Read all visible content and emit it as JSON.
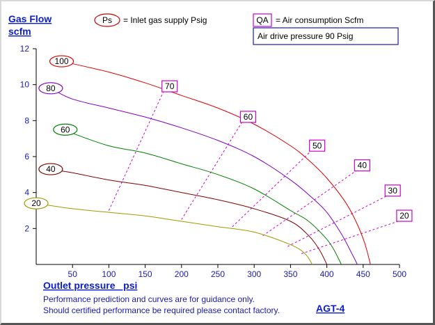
{
  "chart_data": {
    "type": "line",
    "title": "",
    "ylabel": "Gas Flow",
    "yunit": "scfm",
    "xlabel": "Outlet pressure   psi",
    "ylim": [
      0,
      12
    ],
    "xlim": [
      0,
      500
    ],
    "xticks": [
      50,
      100,
      150,
      200,
      250,
      300,
      350,
      400,
      450,
      500
    ],
    "yticks": [
      2,
      4,
      6,
      8,
      10,
      12
    ],
    "grid": false,
    "legend": {
      "ps_symbol": "Ps",
      "ps_text": "= Inlet gas supply  Psig",
      "qa_symbol": "QA",
      "qa_text": "= Air consumption  Scfm",
      "drive_text": "Air drive pressure  90 Psig"
    },
    "series": [
      {
        "name": "100",
        "color": "#e00000",
        "x": [
          35,
          100,
          150,
          200,
          250,
          300,
          350,
          375,
          400,
          425,
          440,
          452,
          460
        ],
        "y": [
          11.3,
          10.7,
          10.1,
          9.4,
          8.7,
          7.8,
          6.6,
          5.8,
          4.8,
          3.5,
          2.4,
          1.2,
          0
        ]
      },
      {
        "name": "80",
        "color": "#8000c0",
        "x": [
          20,
          50,
          100,
          150,
          200,
          250,
          300,
          350,
          380,
          400,
          420,
          432,
          442
        ],
        "y": [
          9.8,
          9.2,
          8.7,
          8.2,
          7.6,
          6.9,
          6.0,
          4.7,
          3.7,
          2.9,
          1.7,
          0.8,
          0
        ]
      },
      {
        "name": "60",
        "color": "#008000",
        "x": [
          40,
          50,
          100,
          150,
          200,
          250,
          300,
          350,
          375,
          400,
          410,
          420
        ],
        "y": [
          7.5,
          7.3,
          6.6,
          6.2,
          5.6,
          5.0,
          4.2,
          3.0,
          2.4,
          1.4,
          0.8,
          0
        ]
      },
      {
        "name": "40",
        "color": "#800000",
        "x": [
          20,
          50,
          100,
          150,
          200,
          250,
          300,
          350,
          375,
          390,
          400
        ],
        "y": [
          5.3,
          5.1,
          4.7,
          4.4,
          4.0,
          3.6,
          3.1,
          2.4,
          1.6,
          0.8,
          0
        ]
      },
      {
        "name": "20",
        "color": "#a09a00",
        "x": [
          0,
          50,
          100,
          150,
          200,
          250,
          300,
          350,
          370,
          380
        ],
        "y": [
          3.4,
          3.1,
          2.9,
          2.7,
          2.4,
          2.1,
          1.8,
          1.1,
          0.6,
          0
        ]
      }
    ],
    "qa_lines": [
      {
        "label": "70",
        "x": [
          100,
          175
        ],
        "y": [
          3.0,
          9.6
        ]
      },
      {
        "label": "60",
        "x": [
          200,
          283
        ],
        "y": [
          2.5,
          7.9
        ]
      },
      {
        "label": "50",
        "x": [
          270,
          378
        ],
        "y": [
          2.1,
          6.3
        ]
      },
      {
        "label": "40",
        "x": [
          312,
          440
        ],
        "y": [
          1.6,
          5.2
        ]
      },
      {
        "label": "30",
        "x": [
          346,
          482
        ],
        "y": [
          1.0,
          3.8
        ]
      },
      {
        "label": "20",
        "x": [
          365,
          498
        ],
        "y": [
          0.6,
          2.4
        ]
      }
    ]
  },
  "footer": {
    "line1": "Performance prediction and curves are for guidance only.",
    "line2": "Should certified performance be required please contact factory.",
    "model": "AGT-4"
  }
}
